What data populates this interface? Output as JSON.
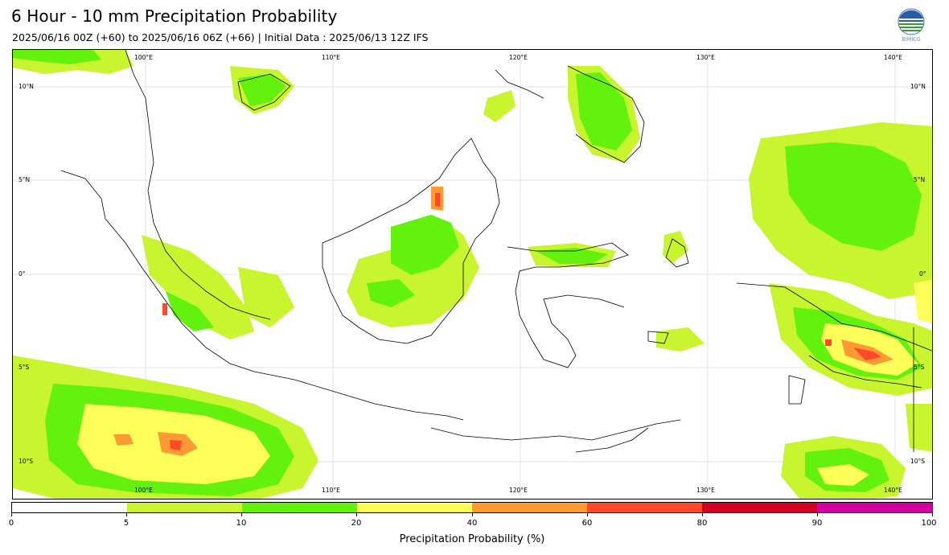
{
  "header": {
    "title": "6 Hour - 10 mm Precipitation Probability",
    "subtitle": "2025/06/16 00Z (+60) to 2025/06/16 06Z (+66) | Initial Data : 2025/06/13 12Z IFS",
    "logo_text": "BMKG"
  },
  "map": {
    "lon_labels_top": [
      "100°E",
      "110°E",
      "120°E",
      "130°E",
      "140°E"
    ],
    "lon_labels_bottom": [
      "100°E",
      "110°E",
      "120°E",
      "130°E",
      "140°E"
    ],
    "lat_labels_left": [
      "10°N",
      "5°N",
      "0°",
      "5°S",
      "10°S"
    ],
    "lat_labels_right": [
      "10°N",
      "5°N",
      "0°",
      "5°S",
      "10°S"
    ],
    "extent": {
      "lon": [
        93,
        142
      ],
      "lat": [
        -12,
        12
      ]
    },
    "gridlines": true
  },
  "colorbar": {
    "label": "Precipitation Probability (%)",
    "ticks": [
      "0",
      "5",
      "10",
      "20",
      "40",
      "60",
      "80",
      "90",
      "100"
    ],
    "colors": [
      "#ffffff",
      "#c8f52d",
      "#62f20d",
      "#ffff5a",
      "#ff9933",
      "#ff4a2a",
      "#d30024",
      "#d2009e"
    ]
  }
}
